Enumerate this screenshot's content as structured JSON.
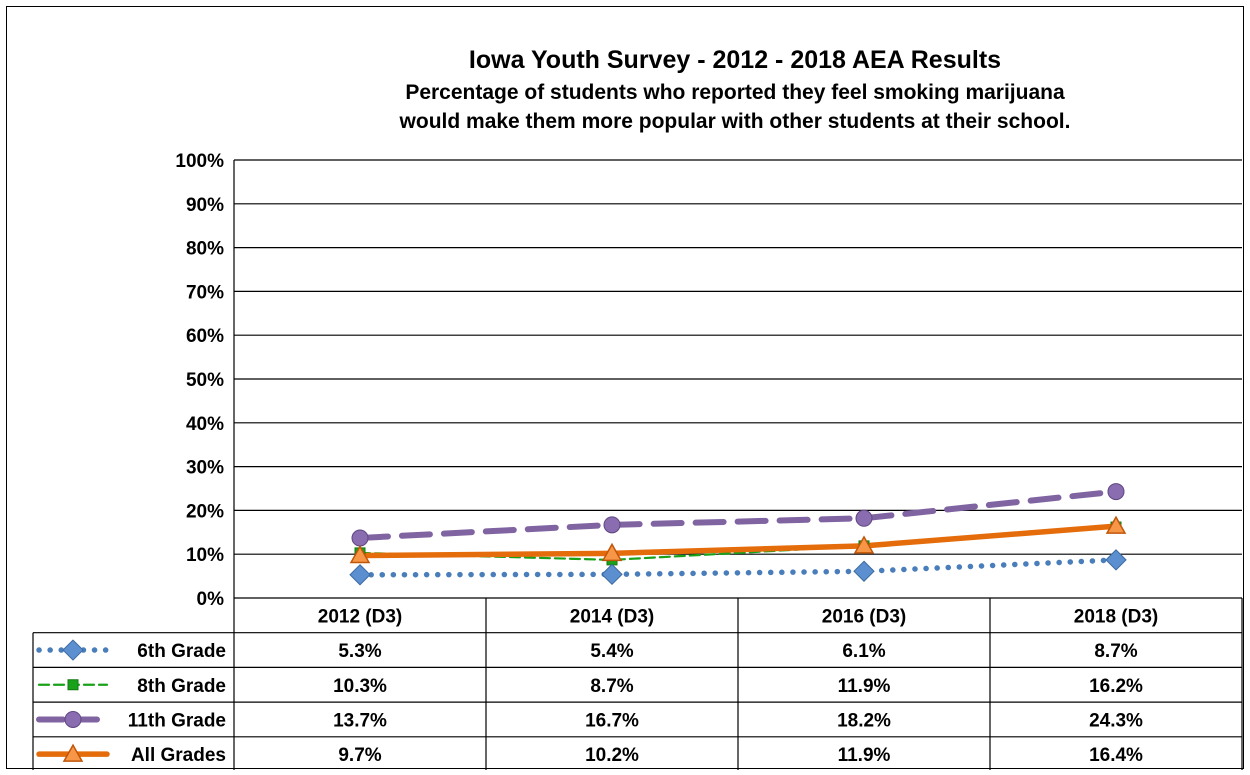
{
  "chart_data": {
    "type": "line",
    "title": "Iowa Youth Survey - 2012 - 2018 AEA Results",
    "subtitle_lines": [
      "Percentage of students who reported they feel smoking marijuana",
      "would make them more popular with other students at their school."
    ],
    "categories": [
      "2012 (D3)",
      "2014 (D3)",
      "2016 (D3)",
      "2018 (D3)"
    ],
    "ylim": [
      0,
      100
    ],
    "yticks": [
      0,
      10,
      20,
      30,
      40,
      50,
      60,
      70,
      80,
      90,
      100
    ],
    "ytick_labels": [
      "0%",
      "10%",
      "20%",
      "30%",
      "40%",
      "50%",
      "60%",
      "70%",
      "80%",
      "90%",
      "100%"
    ],
    "grid": true,
    "legend": "data-table",
    "series": [
      {
        "name": "6th Grade",
        "values": [
          5.3,
          5.4,
          6.1,
          8.7
        ],
        "labels": [
          "5.3%",
          "5.4%",
          "6.1%",
          "8.7%"
        ],
        "color": "#4a7ebb",
        "marker_color": "#5b8fd0",
        "marker": "diamond",
        "dash": "dotted"
      },
      {
        "name": "8th Grade",
        "values": [
          10.3,
          8.7,
          11.9,
          16.2
        ],
        "labels": [
          "10.3%",
          "8.7%",
          "11.9%",
          "16.2%"
        ],
        "color": "#19a119",
        "marker_color": "#19a119",
        "marker": "square",
        "dash": "dashed"
      },
      {
        "name": "11th Grade",
        "values": [
          13.7,
          16.7,
          18.2,
          24.3
        ],
        "labels": [
          "13.7%",
          "16.7%",
          "18.2%",
          "24.3%"
        ],
        "color": "#8064a2",
        "marker_color": "#8a6cb0",
        "marker": "circle",
        "dash": "longdash"
      },
      {
        "name": "All Grades",
        "values": [
          9.7,
          10.2,
          11.9,
          16.4
        ],
        "labels": [
          "9.7%",
          "10.2%",
          "11.9%",
          "16.4%"
        ],
        "color": "#e46c0a",
        "marker_color": "#f79646",
        "marker": "triangle",
        "dash": "solid"
      }
    ]
  }
}
